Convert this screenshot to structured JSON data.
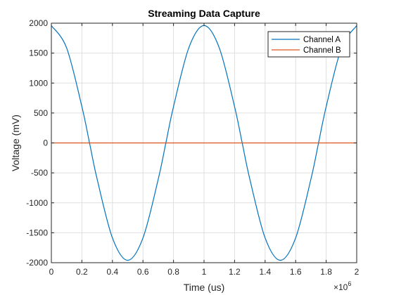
{
  "chart_data": {
    "type": "line",
    "title": "Streaming Data Capture",
    "xlabel": "Time (us)",
    "ylabel": "Voltage (mV)",
    "x_exponent_label": "×10",
    "x_exponent_power": "6",
    "xlim": [
      0,
      2000000
    ],
    "ylim": [
      -2000,
      2000
    ],
    "x_ticks": [
      0,
      200000,
      400000,
      600000,
      800000,
      1000000,
      1200000,
      1400000,
      1600000,
      1800000,
      2000000
    ],
    "x_tick_labels": [
      "0",
      "0.2",
      "0.4",
      "0.6",
      "0.8",
      "1",
      "1.2",
      "1.4",
      "1.6",
      "1.8",
      "2"
    ],
    "y_ticks": [
      -2000,
      -1500,
      -1000,
      -500,
      0,
      500,
      1000,
      1500,
      2000
    ],
    "y_tick_labels": [
      "-2000",
      "-1500",
      "-1000",
      "-500",
      "0",
      "500",
      "1000",
      "1500",
      "2000"
    ],
    "grid": true,
    "legend_position": "top-right",
    "series": [
      {
        "name": "Channel A",
        "color": "#0072BD",
        "x": [
          0,
          100000,
          200000,
          250000,
          300000,
          400000,
          500000,
          600000,
          700000,
          750000,
          800000,
          900000,
          1000000,
          1100000,
          1200000,
          1250000,
          1300000,
          1400000,
          1500000,
          1600000,
          1700000,
          1750000,
          1800000,
          1900000,
          2000000
        ],
        "y": [
          1960,
          1586,
          606,
          0,
          -606,
          -1586,
          -1960,
          -1586,
          -606,
          0,
          606,
          1586,
          1960,
          1586,
          606,
          0,
          -606,
          -1586,
          -1960,
          -1586,
          -606,
          0,
          606,
          1586,
          1960
        ]
      },
      {
        "name": "Channel B",
        "color": "#D95319",
        "x": [
          0,
          2000000
        ],
        "y": [
          0,
          0
        ]
      }
    ]
  }
}
